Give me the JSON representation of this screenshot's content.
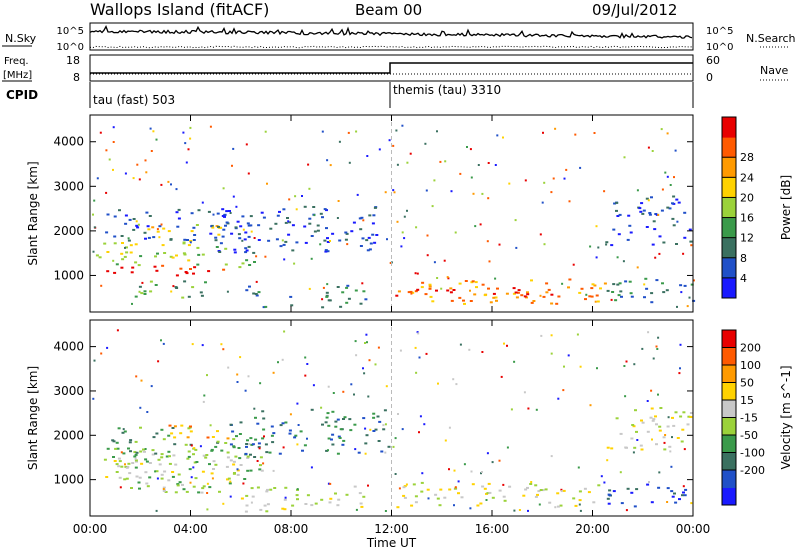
{
  "header": {
    "title": "Wallops Island (fitACF)",
    "beam": "Beam 00",
    "date": "09/Jul/2012"
  },
  "strip": {
    "nsky_label": "N.Sky",
    "nsearch_label": "N.Search",
    "nsky_ticks": [
      "10^5",
      "10^0"
    ],
    "nsearch_ticks": [
      "10^5",
      "10^0"
    ],
    "freq_label_line1": "Freq.",
    "freq_label_line2": "[MHz]",
    "freq_ticks": [
      "18",
      "8"
    ],
    "nave_label": "Nave",
    "nave_ticks": [
      "60",
      "0"
    ],
    "cpid_label": "CPID",
    "cpid_1": "tau (fast) 503",
    "cpid_2": "themis (tau) 3310"
  },
  "chart_data": [
    {
      "type": "heatmap",
      "title": "",
      "xlabel": "",
      "ylabel": "Slant Range [km]",
      "xlim": [
        0,
        24
      ],
      "ylim": [
        180,
        4600
      ],
      "yticks": [
        "1000",
        "2000",
        "3000",
        "4000"
      ],
      "colorbar_label": "Power [dB]",
      "colorbar_ticks": [
        "4",
        "8",
        "12",
        "16",
        "20",
        "24",
        "28"
      ],
      "colors": [
        "#1a1aff",
        "#2050c8",
        "#3a7060",
        "#3a9a4a",
        "#9bd23a",
        "#ffd200",
        "#ff9a00",
        "#ff5a00",
        "#e80000"
      ],
      "regions": [
        {
          "t": [
            0.0,
            5.8
          ],
          "r": [
            1000,
            1250
          ],
          "level": 8
        },
        {
          "t": [
            5.8,
            7.0
          ],
          "r": [
            1150,
            1400
          ],
          "level": 4
        },
        {
          "t": [
            0.0,
            5.5
          ],
          "r": [
            1250,
            1800
          ],
          "level": 4
        },
        {
          "t": [
            0.5,
            6.5
          ],
          "r": [
            1800,
            2500
          ],
          "level": 1
        },
        {
          "t": [
            2.0,
            5.2
          ],
          "r": [
            1900,
            2200
          ],
          "level": 5
        },
        {
          "t": [
            5.0,
            11.5
          ],
          "r": [
            1500,
            2600
          ],
          "level": 1
        },
        {
          "t": [
            1.5,
            5.0
          ],
          "r": [
            500,
            900
          ],
          "level": 3
        },
        {
          "t": [
            6.0,
            11.0
          ],
          "r": [
            300,
            800
          ],
          "level": 2
        },
        {
          "t": [
            12.0,
            20.5
          ],
          "r": [
            380,
            950
          ],
          "level": 6
        },
        {
          "t": [
            12.0,
            20.5
          ],
          "r": [
            550,
            750
          ],
          "level": 8
        },
        {
          "t": [
            20.5,
            24.0
          ],
          "r": [
            400,
            950
          ],
          "level": 2
        },
        {
          "t": [
            20.5,
            24.0
          ],
          "r": [
            1700,
            2800
          ],
          "level": 1
        }
      ]
    },
    {
      "type": "heatmap",
      "title": "",
      "xlabel": "Time UT",
      "ylabel": "Slant Range [km]",
      "xlim": [
        0,
        24
      ],
      "ylim": [
        180,
        4600
      ],
      "xticks": [
        "00:00",
        "04:00",
        "08:00",
        "12:00",
        "16:00",
        "20:00",
        "00:00"
      ],
      "yticks": [
        "1000",
        "2000",
        "3000",
        "4000"
      ],
      "colorbar_label": "Velocity [m s^-1]",
      "colorbar_ticks": [
        "200",
        "100",
        "50",
        "15",
        "-15",
        "-50",
        "-100",
        "-200"
      ],
      "colors": [
        "#1a1aff",
        "#2050c8",
        "#3a7060",
        "#3a9a4a",
        "#9bd23a",
        "#c8c8c8",
        "#ffd200",
        "#ff9a00",
        "#ff5a00",
        "#e80000"
      ],
      "regions": [
        {
          "t": [
            0.0,
            6.0
          ],
          "r": [
            1000,
            1500
          ],
          "level": 5
        },
        {
          "t": [
            1.0,
            7.0
          ],
          "r": [
            700,
            1700
          ],
          "level": 4
        },
        {
          "t": [
            0.5,
            7.0
          ],
          "r": [
            1500,
            2200
          ],
          "level": 3
        },
        {
          "t": [
            3.0,
            5.5
          ],
          "r": [
            1900,
            2300
          ],
          "level": 7
        },
        {
          "t": [
            5.5,
            12.0
          ],
          "r": [
            1600,
            2600
          ],
          "level": 2
        },
        {
          "t": [
            6.0,
            11.0
          ],
          "r": [
            300,
            900
          ],
          "level": 5
        },
        {
          "t": [
            12.0,
            20.5
          ],
          "r": [
            400,
            950
          ],
          "level": 5
        },
        {
          "t": [
            20.5,
            24.0
          ],
          "r": [
            1700,
            2700
          ],
          "level": 5
        },
        {
          "t": [
            20.5,
            24.0
          ],
          "r": [
            400,
            950
          ],
          "level": 1
        }
      ]
    }
  ]
}
